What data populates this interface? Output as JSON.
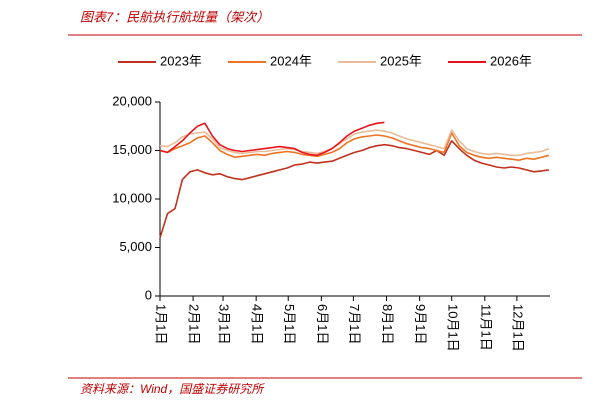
{
  "chart_data": {
    "type": "line",
    "title": "图表7：民航执行航班量（架次）",
    "source": "资料来源：Wind，国盛证券研究所",
    "x": [
      0,
      7,
      14,
      21,
      28,
      35,
      42,
      49,
      56,
      63,
      70,
      77,
      84,
      91,
      98,
      105,
      112,
      119,
      126,
      133,
      140,
      147,
      154,
      161,
      168,
      175,
      182,
      189,
      196,
      203,
      210,
      217,
      224,
      231,
      238,
      245,
      252,
      259,
      266,
      273,
      280,
      287,
      294,
      301,
      308,
      315,
      322,
      329,
      336,
      343,
      350,
      357,
      364
    ],
    "xlim": [
      0,
      365
    ],
    "xticks": [
      {
        "value": 0,
        "label": "1月1日"
      },
      {
        "value": 31,
        "label": "2月1日"
      },
      {
        "value": 59,
        "label": "3月1日"
      },
      {
        "value": 90,
        "label": "4月1日"
      },
      {
        "value": 120,
        "label": "5月1日"
      },
      {
        "value": 151,
        "label": "6月1日"
      },
      {
        "value": 181,
        "label": "7月1日"
      },
      {
        "value": 212,
        "label": "8月1日"
      },
      {
        "value": 243,
        "label": "9月1日"
      },
      {
        "value": 273,
        "label": "10月1日"
      },
      {
        "value": 304,
        "label": "11月1日"
      },
      {
        "value": 334,
        "label": "12月1日"
      }
    ],
    "ylim": [
      0,
      20000
    ],
    "yticks": [
      0,
      {
        "value": 5000,
        "label": "5,000"
      },
      {
        "value": 10000,
        "label": "10,000"
      },
      {
        "value": 15000,
        "label": "15,000"
      },
      {
        "value": 20000,
        "label": "20,000"
      }
    ],
    "series": [
      {
        "name": "2023年",
        "color": "#c0321e",
        "values": [
          6000,
          8500,
          9000,
          12000,
          12800,
          13000,
          12700,
          12500,
          12600,
          12300,
          12100,
          12000,
          12200,
          12400,
          12600,
          12800,
          13000,
          13200,
          13500,
          13600,
          13800,
          13700,
          13800,
          13900,
          14200,
          14500,
          14800,
          15000,
          15300,
          15500,
          15600,
          15500,
          15300,
          15200,
          15000,
          14800,
          14600,
          15000,
          14500,
          16000,
          15200,
          14500,
          14000,
          13700,
          13500,
          13300,
          13200,
          13300,
          13200,
          13000,
          12800,
          12900,
          13000
        ]
      },
      {
        "name": "2024年",
        "color": "#ec7424",
        "values": [
          15000,
          14800,
          15200,
          15500,
          15800,
          16300,
          16500,
          15800,
          15000,
          14600,
          14300,
          14400,
          14500,
          14600,
          14500,
          14700,
          14800,
          14900,
          14800,
          14600,
          14500,
          14400,
          14600,
          14800,
          15200,
          15800,
          16200,
          16400,
          16500,
          16600,
          16500,
          16300,
          16000,
          15700,
          15500,
          15300,
          15200,
          15000,
          14800,
          16800,
          15500,
          14800,
          14500,
          14300,
          14200,
          14300,
          14200,
          14100,
          14000,
          14200,
          14100,
          14300,
          14500
        ]
      },
      {
        "name": "2025年",
        "color": "#e8bc98",
        "values": [
          15500,
          15400,
          15800,
          16400,
          16700,
          16800,
          16900,
          16200,
          15300,
          15000,
          14800,
          14700,
          14800,
          14900,
          14900,
          15000,
          15100,
          15200,
          15100,
          14900,
          14800,
          14700,
          14900,
          15200,
          15700,
          16200,
          16700,
          16900,
          17000,
          17100,
          17000,
          16800,
          16500,
          16200,
          16000,
          15800,
          15600,
          15400,
          15200,
          17100,
          16000,
          15200,
          14900,
          14700,
          14600,
          14700,
          14600,
          14500,
          14500,
          14700,
          14800,
          14900,
          15200
        ]
      },
      {
        "name": "2026年",
        "color": "#e8141c",
        "values": [
          15000,
          14800,
          15400,
          16000,
          16800,
          17500,
          17800,
          16500,
          15600,
          15200,
          15000,
          14900,
          15000,
          15100,
          15200,
          15300,
          15400,
          15300,
          15200,
          14800,
          14600,
          14500,
          14800,
          15200,
          15800,
          16500,
          17000,
          17300,
          17600,
          17800,
          17900,
          null,
          null,
          null,
          null,
          null,
          null,
          null,
          null,
          null,
          null,
          null,
          null,
          null,
          null,
          null,
          null,
          null,
          null,
          null,
          null,
          null,
          null
        ]
      }
    ]
  }
}
